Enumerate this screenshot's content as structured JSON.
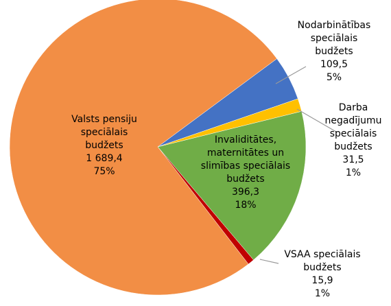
{
  "chart_data": {
    "type": "pie",
    "categories": [
      "Nodarbinātības speciālais budžets",
      "Darba negadījumu speciālais budžets",
      "Invaliditātes, maternitātes un slimības speciālais budžets",
      "VSAA speciālais budžets",
      "Valsts pensiju speciālais budžets"
    ],
    "values": [
      109.5,
      31.5,
      396.3,
      15.9,
      1689.4
    ],
    "value_labels": [
      "109,5",
      "31,5",
      "396,3",
      "15,9",
      "1 689,4"
    ],
    "percent_labels": [
      "5%",
      "1%",
      "18%",
      "1%",
      "75%"
    ],
    "colors": [
      "#4472c4",
      "#ffc000",
      "#70ad47",
      "#c00000",
      "#f28e45"
    ]
  }
}
